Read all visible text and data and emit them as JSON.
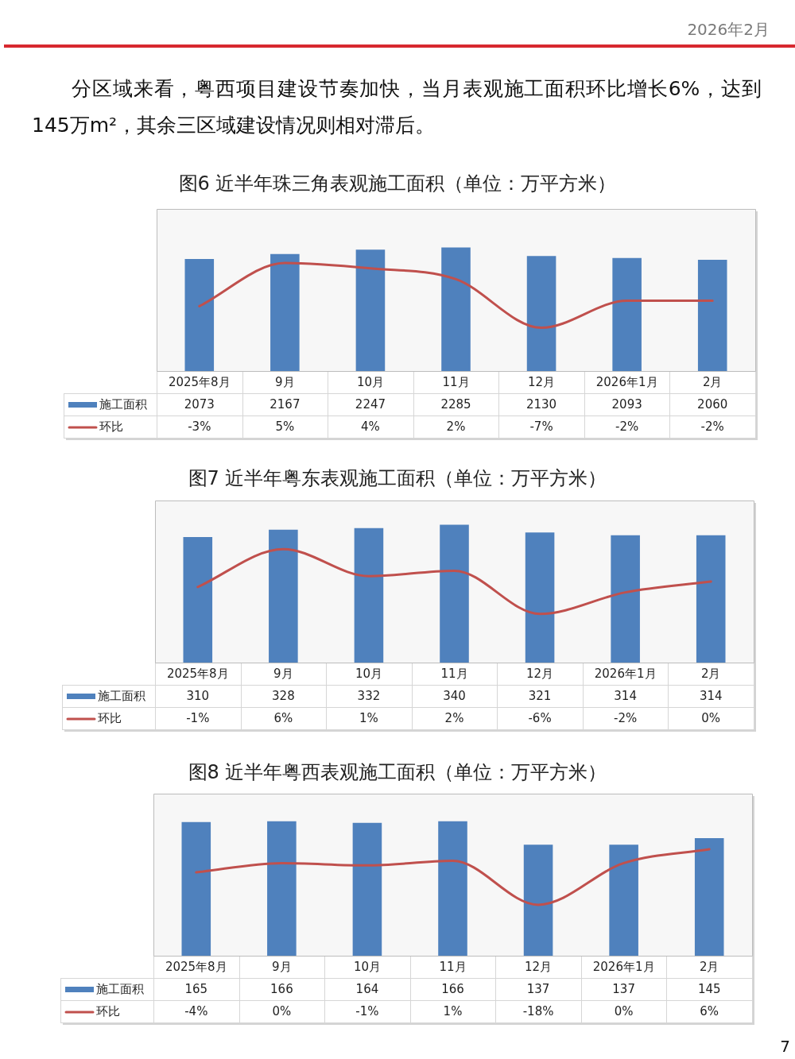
{
  "chart_data": [
    {
      "type": "bar",
      "title": "图6 近半年珠三角表观施工面积（单位：万平方米）",
      "annotations": [
        "2026年2月",
        "分区域来看，粤西项目建设节奏加快，当月表观施工面积环比增长6%，达到145万m²，其余三区域建设情况则相对滞后。"
      ],
      "categories": [
        "2025年8月",
        "9月",
        "10月",
        "11月",
        "12月",
        "2026年1月",
        "2月"
      ],
      "series": [
        {
          "name": "施工面积",
          "color": "#4f81bd",
          "values": [
            2073,
            2167,
            2247,
            2285,
            2130,
            2093,
            2060
          ]
        },
        {
          "name": "环比",
          "type": "line",
          "axis": "y2",
          "color": "#c0504d",
          "marker": "none",
          "values": [
            -3,
            5,
            4,
            2,
            -7,
            -2,
            -2
          ],
          "value_labels": [
            "-3%",
            "5%",
            "4%",
            "2%",
            "-7%",
            "-2%",
            "-2%"
          ]
        }
      ],
      "data_labels": true,
      "legend": "bottom",
      "tick_labels": "x"
    },
    {
      "type": "bar",
      "title": "图7 近半年粤东表观施工面积（单位：万平方米）",
      "categories": [
        "2025年8月",
        "9月",
        "10月",
        "11月",
        "12月",
        "2026年1月",
        "2月"
      ],
      "series": [
        {
          "name": "施工面积",
          "color": "#4f81bd",
          "values": [
            310,
            328,
            332,
            340,
            321,
            314,
            314
          ]
        },
        {
          "name": "环比",
          "type": "line",
          "axis": "y2",
          "color": "#c0504d",
          "marker": "none",
          "values": [
            -1,
            6,
            1,
            2,
            -6,
            -2,
            0
          ],
          "value_labels": [
            "-1%",
            "6%",
            "1%",
            "2%",
            "-6%",
            "-2%",
            "0%"
          ]
        }
      ],
      "data_labels": true,
      "legend": "bottom",
      "tick_labels": "x"
    },
    {
      "type": "bar",
      "title": "图8 近半年粤西表观施工面积（单位：万平方米）",
      "annotations": [
        "7"
      ],
      "categories": [
        "2025年8月",
        "9月",
        "10月",
        "11月",
        "12月",
        "2026年1月",
        "2月"
      ],
      "series": [
        {
          "name": "施工面积",
          "color": "#4f81bd",
          "values": [
            165,
            166,
            164,
            166,
            137,
            137,
            145
          ]
        },
        {
          "name": "环比",
          "type": "line",
          "axis": "y2",
          "color": "#c0504d",
          "marker": "none",
          "values": [
            -4,
            0,
            -1,
            1,
            -18,
            0,
            6
          ],
          "value_labels": [
            "-4%",
            "0%",
            "-1%",
            "1%",
            "-18%",
            "0%",
            "6%"
          ]
        }
      ],
      "data_labels": true,
      "legend": "bottom",
      "tick_labels": "x"
    }
  ]
}
